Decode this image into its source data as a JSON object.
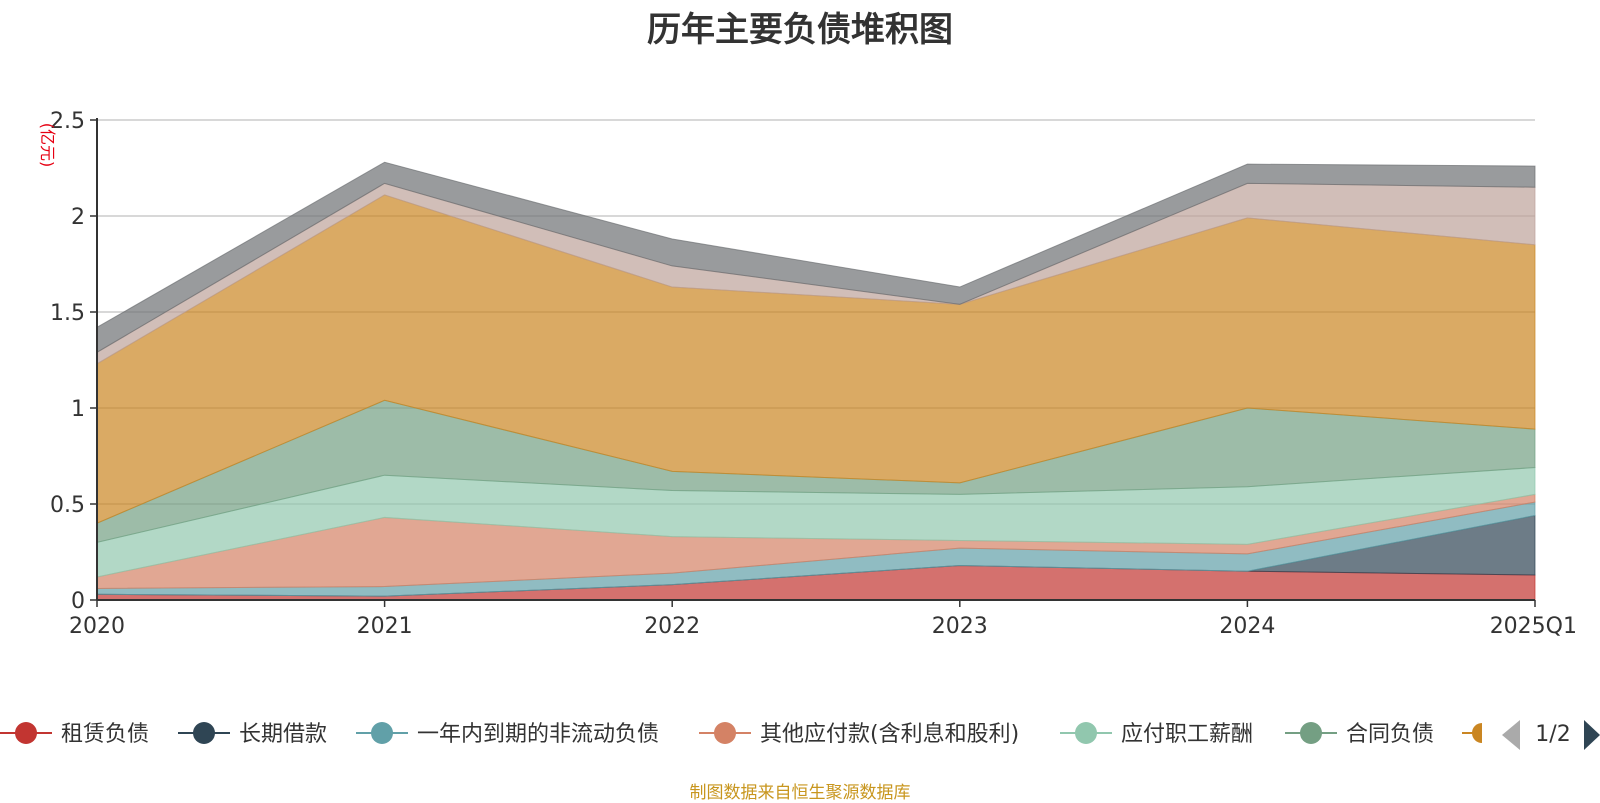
{
  "source_note": "制图数据来自恒生聚源数据库",
  "legend": {
    "page": "1/2"
  },
  "chart_data": {
    "type": "area",
    "stacked": true,
    "title": "历年主要负债堆积图",
    "unit": "(亿元)",
    "categories": [
      "2020",
      "2021",
      "2022",
      "2023",
      "2024",
      "2025Q1"
    ],
    "ylim": [
      0,
      2.5
    ],
    "yticks": [
      "0",
      "0.5",
      "1",
      "1.5",
      "2",
      "2.5"
    ],
    "grid": true,
    "legend_position": "bottom",
    "series": [
      {
        "name": "租赁负债",
        "color": "#c23531",
        "values": [
          0.03,
          0.02,
          0.08,
          0.18,
          0.15,
          0.13
        ]
      },
      {
        "name": "长期借款",
        "color": "#2f4554",
        "values": [
          0.0,
          0.0,
          0.0,
          0.0,
          0.0,
          0.31
        ]
      },
      {
        "name": "一年内到期的非流动负债",
        "color": "#61a0a8",
        "values": [
          0.03,
          0.05,
          0.06,
          0.09,
          0.09,
          0.07
        ]
      },
      {
        "name": "其他应付款(含利息和股利)",
        "color": "#d48265",
        "values": [
          0.06,
          0.36,
          0.19,
          0.04,
          0.05,
          0.04
        ]
      },
      {
        "name": "应付职工薪酬",
        "color": "#91c7ae",
        "values": [
          0.18,
          0.22,
          0.24,
          0.24,
          0.3,
          0.14
        ]
      },
      {
        "name": "合同负债",
        "color": "#749f83",
        "values": [
          0.1,
          0.39,
          0.1,
          0.06,
          0.41,
          0.2
        ]
      },
      {
        "name": "",
        "color": "#ca8622",
        "values": [
          0.83,
          1.07,
          0.96,
          0.93,
          0.99,
          0.96
        ]
      },
      {
        "name": "",
        "color": "#bda29a",
        "values": [
          0.06,
          0.06,
          0.11,
          0.0,
          0.18,
          0.3
        ]
      },
      {
        "name": "",
        "color": "#6e7074",
        "values": [
          0.13,
          0.11,
          0.14,
          0.09,
          0.1,
          0.11
        ]
      }
    ]
  }
}
